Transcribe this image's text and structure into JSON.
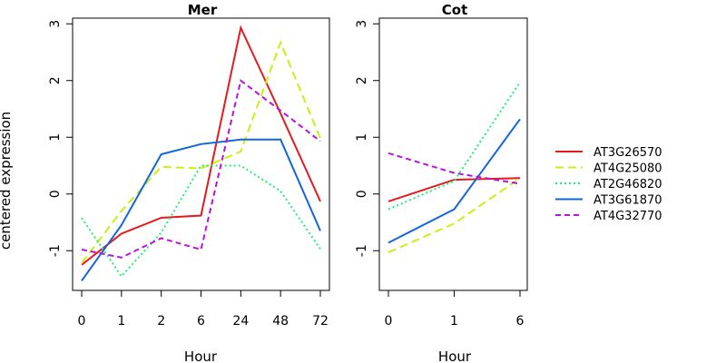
{
  "chart_data": [
    {
      "type": "line",
      "title": "Mer",
      "xlabel": "Hour",
      "ylabel": "centered expression",
      "categories": [
        "0",
        "1",
        "2",
        "6",
        "24",
        "48",
        "72"
      ],
      "ylim": [
        -1.7,
        3.1
      ],
      "yticks": [
        -1,
        0,
        1,
        2,
        3
      ],
      "series": [
        {
          "name": "AT3G26570",
          "color": "#e41a1c",
          "dash": "solid",
          "values": [
            -1.25,
            -0.7,
            -0.42,
            -0.38,
            2.93,
            1.42,
            -0.13
          ]
        },
        {
          "name": "AT4G25080",
          "color": "#ccee11",
          "dash": "long-dash",
          "values": [
            -1.22,
            -0.3,
            0.48,
            0.45,
            0.75,
            2.67,
            0.98
          ]
        },
        {
          "name": "AT2G46820",
          "color": "#22ee77",
          "dash": "dotted",
          "values": [
            -0.42,
            -1.45,
            -0.68,
            0.5,
            0.5,
            0.05,
            -0.97
          ]
        },
        {
          "name": "AT3G61870",
          "color": "#1166dd",
          "dash": "solid",
          "values": [
            -1.53,
            -0.55,
            0.7,
            0.88,
            0.96,
            0.96,
            -0.65
          ]
        },
        {
          "name": "AT4G32770",
          "color": "#bb11dd",
          "dash": "dashed",
          "values": [
            -0.98,
            -1.12,
            -0.78,
            -0.98,
            2.0,
            1.47,
            0.93
          ]
        }
      ]
    },
    {
      "type": "line",
      "title": "Cot",
      "xlabel": "Hour",
      "ylabel": "",
      "categories": [
        "0",
        "1",
        "6"
      ],
      "ylim": [
        -1.7,
        3.1
      ],
      "yticks": [
        -1,
        0,
        1,
        2,
        3
      ],
      "series": [
        {
          "name": "AT3G26570",
          "color": "#e41a1c",
          "dash": "solid",
          "values": [
            -0.13,
            0.25,
            0.28
          ]
        },
        {
          "name": "AT4G25080",
          "color": "#ccee11",
          "dash": "long-dash",
          "values": [
            -1.03,
            -0.52,
            0.28
          ]
        },
        {
          "name": "AT2G46820",
          "color": "#22ee77",
          "dash": "dotted",
          "values": [
            -0.27,
            0.23,
            1.97
          ]
        },
        {
          "name": "AT3G61870",
          "color": "#1166dd",
          "dash": "solid",
          "values": [
            -0.86,
            -0.27,
            1.32
          ]
        },
        {
          "name": "AT4G32770",
          "color": "#bb11dd",
          "dash": "dashed",
          "values": [
            0.72,
            0.37,
            0.18
          ]
        }
      ]
    }
  ],
  "legend": {
    "placement": "right",
    "items": [
      {
        "label": "AT3G26570",
        "color": "#e41a1c",
        "dash": "solid"
      },
      {
        "label": "AT4G25080",
        "color": "#ccee11",
        "dash": "long-dash"
      },
      {
        "label": "AT2G46820",
        "color": "#22ee77",
        "dash": "dotted"
      },
      {
        "label": "AT3G61870",
        "color": "#1166dd",
        "dash": "solid"
      },
      {
        "label": "AT4G32770",
        "color": "#bb11dd",
        "dash": "dashed"
      }
    ]
  }
}
